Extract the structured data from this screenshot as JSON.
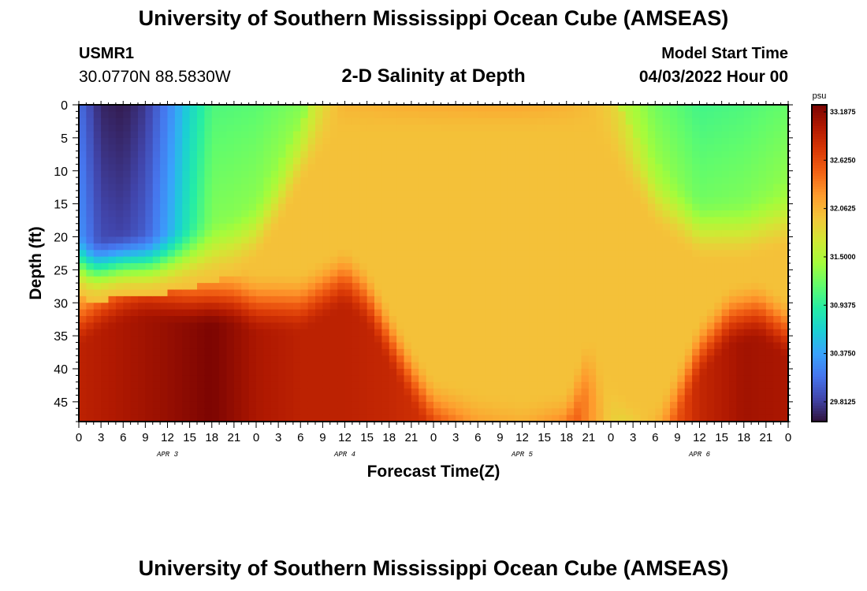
{
  "header": {
    "title": "University of Southern Mississippi Ocean Cube (AMSEAS)",
    "station_id": "USMR1",
    "coordinates": "30.0770N  88.5830W",
    "subtitle": "2-D Salinity at Depth",
    "model_start_label": "Model Start Time",
    "model_start_value": "04/03/2022 Hour 00"
  },
  "footer": {
    "title": "University of Southern Mississippi Ocean Cube (AMSEAS)"
  },
  "colors": {
    "background": "#ffffff",
    "axis": "#000000"
  },
  "chart_data": {
    "type": "heatmap",
    "title": "2-D Salinity at Depth",
    "xlabel": "Forecast Time(Z)",
    "ylabel": "Depth (ft)",
    "x_hours": [
      0,
      96
    ],
    "ylim": [
      0,
      48
    ],
    "x_tick_labels": [
      "0",
      "3",
      "6",
      "9",
      "12",
      "15",
      "18",
      "21",
      "0",
      "3",
      "6",
      "9",
      "12",
      "15",
      "18",
      "21",
      "0",
      "3",
      "6",
      "9",
      "12",
      "15",
      "18",
      "21",
      "0",
      "3",
      "6",
      "9",
      "12",
      "15",
      "18",
      "21",
      "0"
    ],
    "day_labels": [
      "APR 3",
      "APR 4",
      "APR 5",
      "APR 6"
    ],
    "y_ticks": [
      0,
      5,
      10,
      15,
      20,
      25,
      30,
      35,
      40,
      45
    ],
    "colorbar": {
      "unit": "psu",
      "range": [
        29.5,
        33.1875
      ],
      "tick_labels": [
        "33.1875",
        "32.6250",
        "32.0625",
        "31.5000",
        "30.9375",
        "30.3750",
        "29.8125"
      ],
      "tick_values": [
        33.1875,
        32.625,
        32.0625,
        31.5,
        30.9375,
        30.375,
        29.8125
      ],
      "colormap": [
        "#30123b",
        "#4145ab",
        "#4675ed",
        "#39a2fc",
        "#1bcfd4",
        "#24eca6",
        "#61fc6c",
        "#a4fc3b",
        "#d1e834",
        "#f3c63a",
        "#fe9b2d",
        "#f36315",
        "#d93806",
        "#b11901",
        "#7a0402"
      ]
    },
    "surface_boundary_depth": [
      {
        "hour": 0,
        "depth": 24
      },
      {
        "hour": 2,
        "depth": 25
      },
      {
        "hour": 6,
        "depth": 24
      },
      {
        "hour": 10,
        "depth": 24
      },
      {
        "hour": 14,
        "depth": 23
      },
      {
        "hour": 18,
        "depth": 22
      },
      {
        "hour": 21,
        "depth": 21
      },
      {
        "hour": 24,
        "depth": 19
      },
      {
        "hour": 27,
        "depth": 14
      },
      {
        "hour": 30,
        "depth": 8
      },
      {
        "hour": 33,
        "depth": 3
      },
      {
        "hour": 36,
        "depth": 0
      },
      {
        "hour": 68,
        "depth": 0
      },
      {
        "hour": 72,
        "depth": 4
      },
      {
        "hour": 78,
        "depth": 14
      },
      {
        "hour": 84,
        "depth": 19
      },
      {
        "hour": 90,
        "depth": 19
      },
      {
        "hour": 96,
        "depth": 17
      }
    ],
    "surface_salinity": [
      {
        "hour": 0,
        "value": 30.0
      },
      {
        "hour": 3,
        "value": 29.6
      },
      {
        "hour": 6,
        "value": 29.55
      },
      {
        "hour": 9,
        "value": 29.7
      },
      {
        "hour": 12,
        "value": 30.1
      },
      {
        "hour": 15,
        "value": 30.6
      },
      {
        "hour": 18,
        "value": 31.0
      },
      {
        "hour": 24,
        "value": 31.05
      },
      {
        "hour": 30,
        "value": 31.2
      },
      {
        "hour": 33,
        "value": 31.5
      },
      {
        "hour": 36,
        "value": 31.85
      },
      {
        "hour": 45,
        "value": 31.95
      },
      {
        "hour": 54,
        "value": 32.0
      },
      {
        "hour": 60,
        "value": 32.0
      },
      {
        "hour": 66,
        "value": 31.9
      },
      {
        "hour": 72,
        "value": 31.6
      },
      {
        "hour": 78,
        "value": 31.15
      },
      {
        "hour": 84,
        "value": 30.95
      },
      {
        "hour": 90,
        "value": 31.0
      },
      {
        "hour": 96,
        "value": 31.1
      }
    ],
    "bottom_boundary_depth": [
      {
        "hour": 0,
        "depth": 30
      },
      {
        "hour": 3,
        "depth": 28
      },
      {
        "hour": 6,
        "depth": 26.5
      },
      {
        "hour": 9,
        "depth": 26
      },
      {
        "hour": 15,
        "depth": 27
      },
      {
        "hour": 18,
        "depth": 27
      },
      {
        "hour": 21,
        "depth": 27
      },
      {
        "hour": 24,
        "depth": 28
      },
      {
        "hour": 30,
        "depth": 28
      },
      {
        "hour": 36,
        "depth": 24
      },
      {
        "hour": 39,
        "depth": 27
      },
      {
        "hour": 42,
        "depth": 33
      },
      {
        "hour": 45,
        "depth": 39
      },
      {
        "hour": 48,
        "depth": 44
      },
      {
        "hour": 54,
        "depth": 46
      },
      {
        "hour": 60,
        "depth": 47
      },
      {
        "hour": 66,
        "depth": 46
      },
      {
        "hour": 69,
        "depth": 37
      },
      {
        "hour": 72,
        "depth": 44
      },
      {
        "hour": 75,
        "depth": 48
      },
      {
        "hour": 78,
        "depth": 48
      },
      {
        "hour": 80,
        "depth": 44
      },
      {
        "hour": 84,
        "depth": 35
      },
      {
        "hour": 88,
        "depth": 30
      },
      {
        "hour": 92,
        "depth": 29
      },
      {
        "hour": 96,
        "depth": 32
      }
    ],
    "bottom_salinity": [
      {
        "hour": 0,
        "value": 32.85
      },
      {
        "hour": 6,
        "value": 32.95
      },
      {
        "hour": 12,
        "value": 33.05
      },
      {
        "hour": 18,
        "value": 33.18
      },
      {
        "hour": 24,
        "value": 32.95
      },
      {
        "hour": 30,
        "value": 32.85
      },
      {
        "hour": 36,
        "value": 32.85
      },
      {
        "hour": 42,
        "value": 32.8
      },
      {
        "hour": 48,
        "value": 32.7
      },
      {
        "hour": 54,
        "value": 32.3
      },
      {
        "hour": 60,
        "value": 32.2
      },
      {
        "hour": 66,
        "value": 32.6
      },
      {
        "hour": 72,
        "value": 31.8
      },
      {
        "hour": 75,
        "value": 31.5
      },
      {
        "hour": 78,
        "value": 32.2
      },
      {
        "hour": 84,
        "value": 32.8
      },
      {
        "hour": 90,
        "value": 33.0
      },
      {
        "hour": 96,
        "value": 32.95
      }
    ]
  }
}
